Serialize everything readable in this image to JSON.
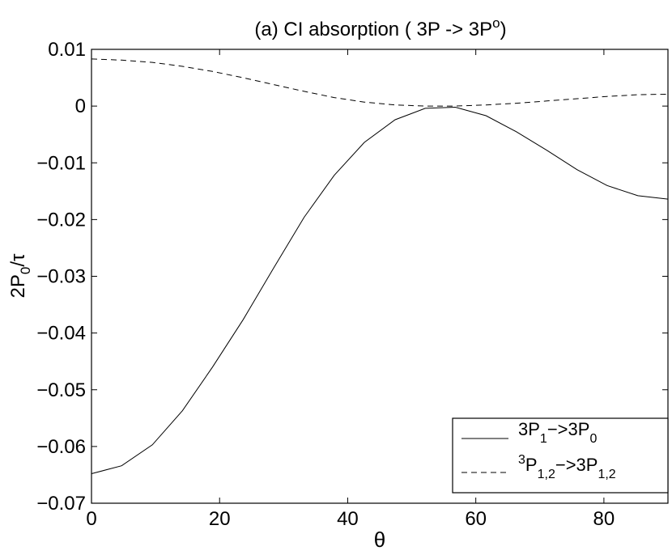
{
  "chart_data": {
    "type": "line",
    "title": {
      "main": "(a) CI absorption ( 3P ",
      "arrow": "->",
      "tail": " 3P",
      "sup": "o",
      "close": ")"
    },
    "xlabel": "θ",
    "ylabel": {
      "main": "2P",
      "sub": "0",
      "tail": "/τ"
    },
    "xlim": [
      0,
      90
    ],
    "ylim": [
      -0.07,
      0.01
    ],
    "xticks": [
      0,
      20,
      40,
      60,
      80
    ],
    "xtick_labels": [
      "0",
      "20",
      "40",
      "60",
      "80"
    ],
    "yticks": [
      0.01,
      0,
      -0.01,
      -0.02,
      -0.03,
      -0.04,
      -0.05,
      -0.06,
      -0.07
    ],
    "ytick_labels": [
      "0.01",
      "0",
      "−0.01",
      "−0.02",
      "−0.03",
      "−0.04",
      "−0.05",
      "−0.06",
      "−0.07"
    ],
    "grid": false,
    "legend_position": "bottom-right",
    "series": [
      {
        "legend": {
          "pre": "",
          "sup": "",
          "a": "3P",
          "sub1": "1",
          "mid": "−>3P",
          "sub2": "0"
        },
        "line_style": "solid",
        "x": [
          0,
          4.7,
          9.5,
          14.2,
          18.9,
          23.7,
          28.4,
          33.2,
          37.9,
          42.6,
          47.4,
          52.1,
          56.8,
          61.6,
          66.3,
          71.1,
          75.8,
          80.5,
          85.3,
          90
        ],
        "y": [
          -0.0648,
          -0.0634,
          -0.0597,
          -0.0537,
          -0.046,
          -0.0376,
          -0.0286,
          -0.0196,
          -0.0122,
          -0.0064,
          -0.0024,
          -0.0004,
          -0.0002,
          -0.0017,
          -0.0045,
          -0.0078,
          -0.0112,
          -0.014,
          -0.0158,
          -0.0164
        ]
      },
      {
        "legend": {
          "pre": "",
          "sup": "3",
          "a": "P",
          "sub1": "1,2",
          "mid": "−>3P",
          "sub2": "1,2"
        },
        "line_style": "dashed",
        "x": [
          0,
          4.7,
          9.5,
          14.2,
          18.9,
          23.7,
          28.4,
          33.2,
          37.9,
          42.6,
          47.4,
          52.1,
          56.8,
          61.6,
          66.3,
          71.1,
          75.8,
          80.5,
          85.3,
          90
        ],
        "y": [
          0.0083,
          0.0081,
          0.0077,
          0.007,
          0.0061,
          0.005,
          0.0038,
          0.0026,
          0.0015,
          0.0007,
          0.0002,
          0.0,
          0.0,
          0.0002,
          0.0005,
          0.0009,
          0.0013,
          0.0017,
          0.002,
          0.0021
        ]
      }
    ]
  }
}
